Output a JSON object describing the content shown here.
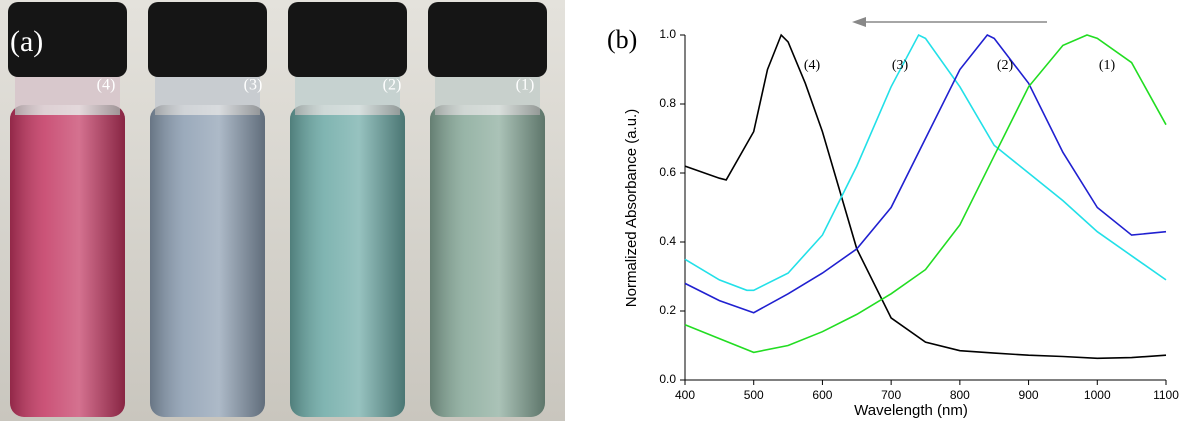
{
  "photo": {
    "label": "(a)",
    "vial_labels": [
      "(4)",
      "(3)",
      "(2)",
      "(1)"
    ]
  },
  "chart_data": {
    "type": "line",
    "label": "(b)",
    "x_label": "Wavelength (nm)",
    "y_label": "Normalized Absorbance (a.u.)",
    "xlim": [
      400,
      1100
    ],
    "ylim": [
      0,
      1
    ],
    "xticks": [
      400,
      500,
      600,
      700,
      800,
      900,
      1000,
      1100
    ],
    "yticks": [
      {
        "value": 0,
        "label": "0.0"
      },
      0.2,
      0.4,
      0.6,
      0.8,
      {
        "value": 1,
        "label": "1.0"
      }
    ],
    "series": [
      {
        "name": "(4)",
        "color": "#000000",
        "x": [
          400,
          450,
          460,
          500,
          520,
          540,
          550,
          575,
          600,
          650,
          700,
          750,
          800,
          850,
          900,
          950,
          1000,
          1050,
          1100
        ],
        "values": [
          0.62,
          0.585,
          0.58,
          0.72,
          0.9,
          1.0,
          0.98,
          0.86,
          0.72,
          0.38,
          0.18,
          0.11,
          0.085,
          0.078,
          0.072,
          0.068,
          0.063,
          0.065,
          0.072
        ]
      },
      {
        "name": "(3)",
        "color": "#22e0e8",
        "x": [
          400,
          450,
          490,
          500,
          550,
          600,
          650,
          700,
          740,
          750,
          800,
          850,
          900,
          950,
          1000,
          1050,
          1100
        ],
        "values": [
          0.35,
          0.29,
          0.26,
          0.26,
          0.31,
          0.42,
          0.62,
          0.85,
          1.0,
          0.99,
          0.85,
          0.68,
          0.6,
          0.52,
          0.43,
          0.36,
          0.29
        ]
      },
      {
        "name": "(2)",
        "color": "#2020d0",
        "x": [
          400,
          450,
          500,
          550,
          600,
          650,
          700,
          750,
          800,
          840,
          850,
          900,
          950,
          1000,
          1050,
          1100
        ],
        "values": [
          0.28,
          0.23,
          0.195,
          0.25,
          0.31,
          0.38,
          0.5,
          0.7,
          0.9,
          1.0,
          0.99,
          0.86,
          0.66,
          0.5,
          0.42,
          0.43
        ]
      },
      {
        "name": "(1)",
        "color": "#22dd22",
        "x": [
          400,
          450,
          500,
          550,
          600,
          650,
          700,
          750,
          800,
          850,
          900,
          950,
          985,
          1000,
          1050,
          1100
        ],
        "values": [
          0.16,
          0.12,
          0.08,
          0.1,
          0.14,
          0.19,
          0.25,
          0.32,
          0.45,
          0.65,
          0.85,
          0.97,
          1.0,
          0.99,
          0.92,
          0.74
        ]
      }
    ]
  }
}
